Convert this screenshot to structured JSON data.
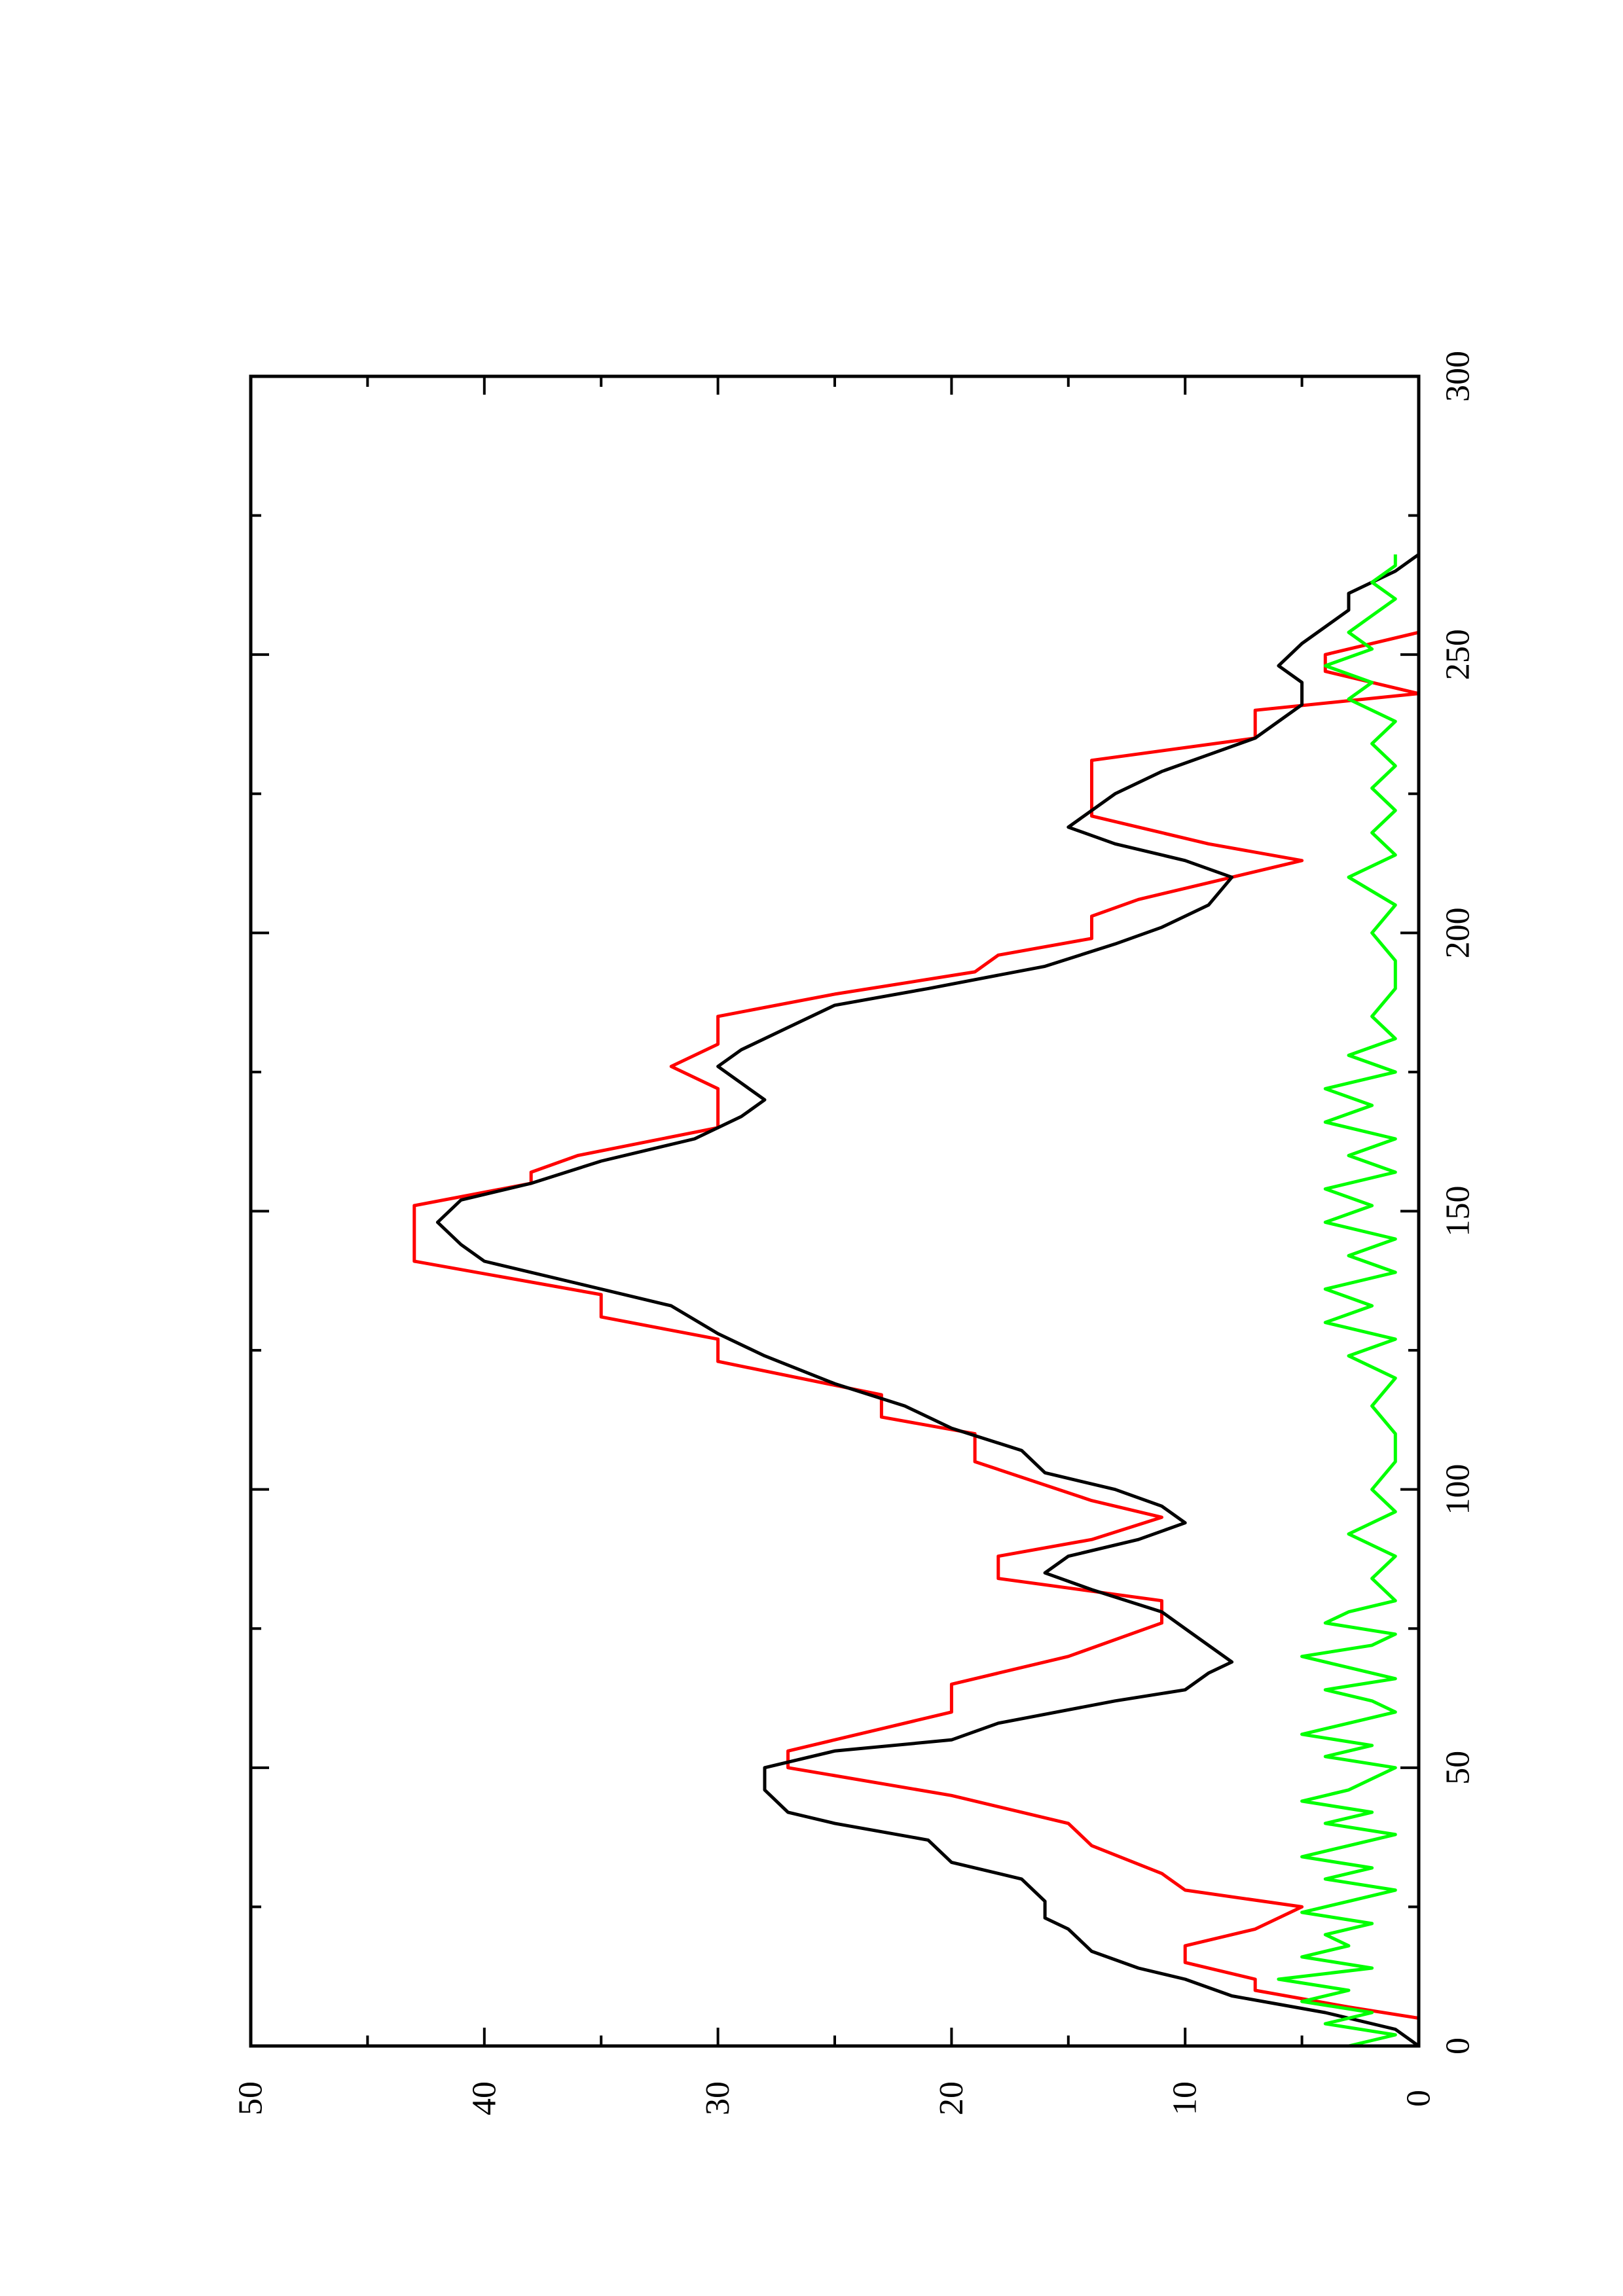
{
  "chart_data": {
    "type": "line",
    "orientation": "rotated-90-ccw",
    "title": "",
    "xlabel": "",
    "ylabel": "",
    "xlim": [
      0,
      300
    ],
    "ylim": [
      0,
      50
    ],
    "x_ticks": [
      0,
      50,
      100,
      150,
      200,
      250,
      300
    ],
    "y_ticks": [
      0,
      10,
      20,
      30,
      40,
      50
    ],
    "x_tick_labels": [
      "0",
      "50",
      "100",
      "150",
      "200",
      "250",
      "300"
    ],
    "y_tick_labels": [
      "0",
      "10",
      "20",
      "30",
      "40",
      "50"
    ],
    "grid": false,
    "legend": "none",
    "series": [
      {
        "color": "#ff0000",
        "x": [
          5,
          7,
          10,
          12,
          15,
          18,
          21,
          25,
          28,
          31,
          36,
          40,
          45,
          50,
          53,
          57,
          60,
          65,
          70,
          76,
          80,
          84,
          88,
          91,
          95,
          98,
          105,
          110,
          113,
          117,
          123,
          127,
          131,
          135,
          141,
          146,
          151,
          155,
          157,
          160,
          165,
          172,
          176,
          180,
          185,
          189,
          193,
          196,
          199,
          203,
          206,
          209,
          213,
          216,
          221,
          226,
          231,
          235,
          240,
          243,
          247,
          250,
          254
        ],
        "y": [
          0,
          3,
          7,
          7,
          10,
          10,
          7,
          5,
          10,
          11,
          14,
          15,
          20,
          27,
          27,
          23,
          20,
          20,
          15,
          11,
          11,
          18,
          18,
          14,
          11,
          14,
          19,
          19,
          23,
          23,
          30,
          30,
          35,
          35,
          43,
          43,
          43,
          38,
          38,
          36,
          30,
          30,
          32,
          30,
          30,
          25,
          19,
          18,
          14,
          14,
          12,
          9,
          5,
          9,
          14,
          14,
          14,
          7,
          7,
          0,
          4,
          4,
          0
        ]
      },
      {
        "color": "#000000",
        "x": [
          0,
          3,
          6,
          9,
          12,
          14,
          17,
          21,
          23,
          26,
          30,
          33,
          37,
          40,
          42,
          46,
          50,
          53,
          55,
          58,
          62,
          64,
          67,
          69,
          72,
          75,
          78,
          82,
          85,
          88,
          91,
          94,
          97,
          100,
          103,
          107,
          111,
          115,
          119,
          124,
          128,
          133,
          137,
          141,
          144,
          148,
          152,
          155,
          159,
          163,
          167,
          170,
          173,
          176,
          179,
          183,
          187,
          190,
          194,
          198,
          201,
          205,
          210,
          213,
          216,
          219,
          222,
          225,
          229,
          232,
          235,
          238,
          241,
          245,
          248,
          252,
          255,
          258,
          261,
          265,
          268
        ],
        "y": [
          0,
          1,
          4,
          8,
          10,
          12,
          14,
          15,
          16,
          16,
          17,
          20,
          21,
          25,
          27,
          28,
          28,
          25,
          20,
          18,
          13,
          10,
          9,
          8,
          9,
          10,
          11,
          14,
          16,
          15,
          12,
          10,
          11,
          13,
          16,
          17,
          20,
          22,
          25,
          28,
          30,
          32,
          36,
          40,
          41,
          42,
          41,
          38,
          35,
          31,
          29,
          28,
          29,
          30,
          29,
          27,
          25,
          21,
          16,
          13,
          11,
          9,
          8,
          10,
          13,
          15,
          14,
          13,
          11,
          9,
          7,
          6,
          5,
          5,
          6,
          5,
          4,
          3,
          3,
          1,
          0
        ]
      },
      {
        "color": "#00ff00",
        "x": [
          0,
          2,
          4,
          6,
          8,
          10,
          12,
          14,
          16,
          18,
          20,
          22,
          24,
          26,
          28,
          30,
          32,
          34,
          36,
          38,
          40,
          42,
          44,
          46,
          48,
          50,
          52,
          54,
          56,
          58,
          60,
          62,
          64,
          66,
          68,
          70,
          72,
          74,
          76,
          78,
          80,
          84,
          88,
          92,
          96,
          100,
          105,
          110,
          115,
          120,
          124,
          127,
          130,
          133,
          136,
          139,
          142,
          145,
          148,
          151,
          154,
          157,
          160,
          163,
          166,
          169,
          172,
          175,
          178,
          181,
          185,
          190,
          195,
          200,
          205,
          210,
          214,
          218,
          222,
          226,
          230,
          234,
          238,
          242,
          245,
          248,
          251,
          254,
          257,
          260,
          263,
          266,
          268
        ],
        "y": [
          3,
          1,
          4,
          2,
          5,
          3,
          6,
          2,
          5,
          3,
          4,
          2,
          5,
          3,
          1,
          4,
          2,
          5,
          3,
          1,
          4,
          2,
          5,
          3,
          2,
          1,
          4,
          2,
          5,
          3,
          1,
          2,
          4,
          1,
          3,
          5,
          2,
          1,
          4,
          3,
          1,
          2,
          1,
          3,
          1,
          2,
          1,
          1,
          2,
          1,
          3,
          1,
          4,
          2,
          4,
          1,
          3,
          1,
          4,
          2,
          4,
          1,
          3,
          1,
          4,
          2,
          4,
          1,
          3,
          1,
          2,
          1,
          1,
          2,
          1,
          3,
          1,
          2,
          1,
          2,
          1,
          2,
          1,
          3,
          2,
          4,
          2,
          3,
          2,
          1,
          2,
          1,
          1
        ]
      }
    ]
  }
}
